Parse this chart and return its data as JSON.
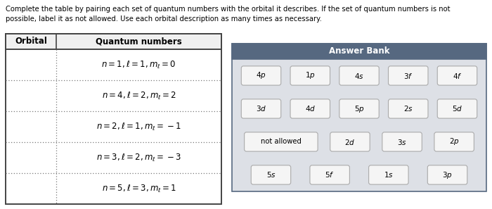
{
  "title_line1": "Complete the table by pairing each set of quantum numbers with the orbital it describes. If the set of quantum numbers is not",
  "title_line2": "possible, label it as not allowed. Use each orbital description as many times as necessary.",
  "table_header": [
    "Orbital",
    "Quantum numbers"
  ],
  "answer_bank_title": "Answer Bank",
  "answer_bank_header_color": "#566880",
  "answer_bank_bg_color": "#dde0e6",
  "answer_bank_items": [
    [
      "4p",
      "1p",
      "4s",
      "3f",
      "4f"
    ],
    [
      "3d",
      "4d",
      "5p",
      "2s",
      "5d"
    ],
    [
      "not allowed",
      "2d",
      "3s",
      "2p"
    ],
    [
      "5s",
      "5f",
      "1s",
      "3p"
    ]
  ],
  "table_border_color": "#444444",
  "table_row_sep_color": "#777777",
  "background_color": "#ffffff",
  "text_color": "#000000",
  "header_bg_color": "#f0f0f0"
}
